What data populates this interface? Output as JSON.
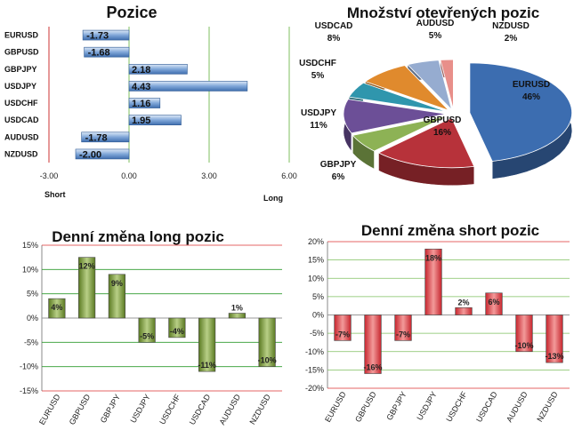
{
  "colors": {
    "pos_bar": "#4a7ebf",
    "pos_bar_light": "#b9d0ec",
    "long_bar": "#6f8f2f",
    "long_bar_light": "#b8cf86",
    "short_bar": "#d8333a",
    "short_bar_light": "#f39a9a",
    "pos_grid": "#7fbf5f",
    "long_grid": "#2f9b2f",
    "short_grid": "#d33",
    "axis": "#888888"
  },
  "chart_data": [
    {
      "id": "pozice",
      "type": "bar",
      "orientation": "horizontal",
      "title": "Pozice",
      "categories": [
        "EURUSD",
        "GBPUSD",
        "GBPJPY",
        "USDJPY",
        "USDCHF",
        "USDCAD",
        "AUDUSD",
        "NZDUSD"
      ],
      "values": [
        -1.73,
        -1.68,
        2.18,
        4.43,
        1.16,
        1.95,
        -1.78,
        -2.0
      ],
      "value_labels": [
        "-1.73",
        "-1.68",
        "2.18",
        "4.43",
        "1.16",
        "1.95",
        "-1.78",
        "-2.00"
      ],
      "xlim": [
        -3.0,
        6.0
      ],
      "xticks": [
        "-3.00",
        "0.00",
        "3.00",
        "6.00"
      ],
      "left_label": "Short",
      "right_label": "Long",
      "grid": true
    },
    {
      "id": "pie",
      "type": "pie",
      "title": "Množství otevřených pozic",
      "slices": [
        {
          "name": "EURUSD",
          "value": 46,
          "label": "46%",
          "color": "#3c6db0"
        },
        {
          "name": "GBPUSD",
          "value": 16,
          "label": "16%",
          "color": "#b7323a"
        },
        {
          "name": "GBPJPY",
          "value": 6,
          "label": "6%",
          "color": "#8db255"
        },
        {
          "name": "USDJPY",
          "value": 11,
          "label": "11%",
          "color": "#6c4f97"
        },
        {
          "name": "USDCHF",
          "value": 5,
          "label": "5%",
          "color": "#2f96ad"
        },
        {
          "name": "USDCAD",
          "value": 8,
          "label": "8%",
          "color": "#e08a2d"
        },
        {
          "name": "AUDUSD",
          "value": 5,
          "label": "5%",
          "color": "#96acd0"
        },
        {
          "name": "NZDUSD",
          "value": 2,
          "label": "2%",
          "color": "#e88f8a"
        }
      ]
    },
    {
      "id": "long",
      "type": "bar",
      "title": "Denní změna long pozic",
      "categories": [
        "EURUSD",
        "GBPUSD",
        "GBPJPY",
        "USDJPY",
        "USDCHF",
        "USDCAD",
        "AUDUSD",
        "NZDUSD"
      ],
      "values": [
        4,
        12.5,
        9,
        -5,
        -4,
        -11,
        1,
        -10
      ],
      "value_labels": [
        "4%",
        "12%",
        "9%",
        "-5%",
        "-4%",
        "-11%",
        "1%",
        "-10%"
      ],
      "ylim": [
        -15,
        15
      ],
      "yticks": [
        "15%",
        "10%",
        "5%",
        "0%",
        "-5%",
        "-10%",
        "-15%"
      ],
      "grid": true
    },
    {
      "id": "short",
      "type": "bar",
      "title": "Denní změna short pozic",
      "categories": [
        "EURUSD",
        "GBPUSD",
        "GBPJPY",
        "USDJPY",
        "USDCHF",
        "USDCAD",
        "AUDUSD",
        "NZDUSD"
      ],
      "values": [
        -7,
        -16,
        -7,
        18,
        2,
        6,
        -10,
        -13
      ],
      "value_labels": [
        "-7%",
        "-16%",
        "-7%",
        "18%",
        "2%",
        "6%",
        "-10%",
        "-13%"
      ],
      "ylim": [
        -20,
        20
      ],
      "yticks": [
        "20%",
        "15%",
        "10%",
        "5%",
        "0%",
        "-5%",
        "-10%",
        "-15%",
        "-20%"
      ],
      "grid": true
    }
  ]
}
